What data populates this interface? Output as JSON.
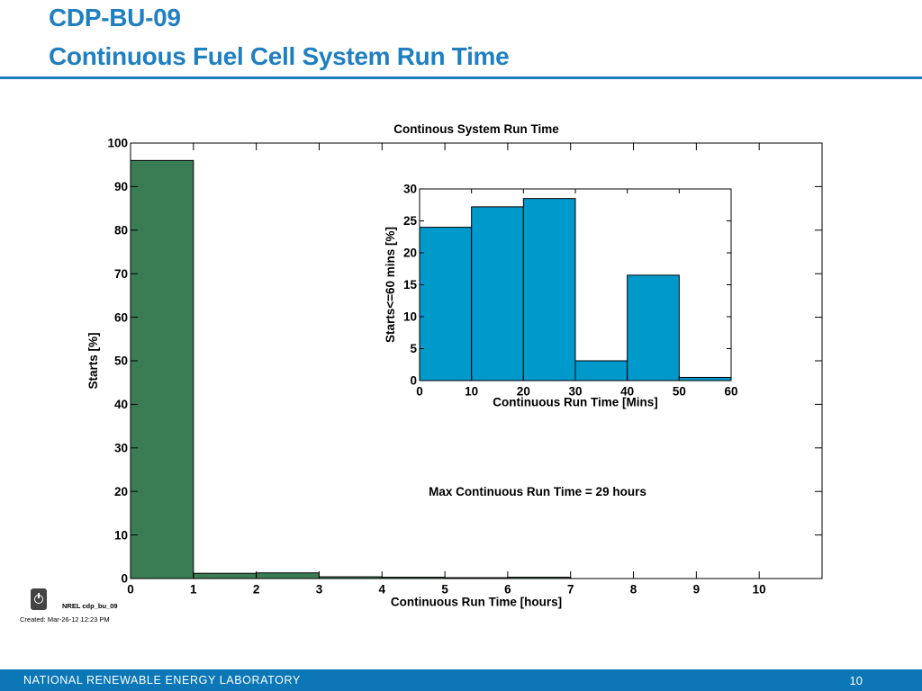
{
  "slide": {
    "title_line1": "CDP-BU-09",
    "title_line2": "Continuous Fuel Cell System Run Time",
    "footer_lab": "NATIONAL RENEWABLE ENERGY LABORATORY",
    "page_number": "10",
    "source_tag": "NREL cdp_bu_09",
    "created": "Created: Mar-26-12 12:23 PM",
    "logo_icon": "power-icon",
    "colors": {
      "title": "#1f7fc1",
      "footer": "#0b77b7",
      "main_bars": "#3a7d55",
      "inset_bars": "#0099cc"
    }
  },
  "chart_data": [
    {
      "type": "bar",
      "title": "Continous System Run Time",
      "xlabel": "Continuous Run Time [hours]",
      "ylabel": "Starts [%]",
      "xlim": [
        0,
        11
      ],
      "ylim": [
        0,
        100
      ],
      "xticks": [
        0,
        1,
        2,
        3,
        4,
        5,
        6,
        7,
        8,
        9,
        10
      ],
      "yticks": [
        0,
        10,
        20,
        30,
        40,
        50,
        60,
        70,
        80,
        90,
        100
      ],
      "bin_edges": [
        0,
        1,
        2,
        3,
        4,
        5,
        6,
        7
      ],
      "values": [
        96,
        1.2,
        1.3,
        0.4,
        0.3,
        0.2,
        0.3
      ],
      "annotation": "Max Continuous Run Time = 29 hours",
      "grid": false
    },
    {
      "type": "bar",
      "title": "",
      "xlabel": "Continuous Run Time [Mins]",
      "ylabel": "Starts<=60 mins [%]",
      "xlim": [
        0,
        60
      ],
      "ylim": [
        0,
        30
      ],
      "xticks": [
        0,
        10,
        20,
        30,
        40,
        50,
        60
      ],
      "yticks": [
        0,
        5,
        10,
        15,
        20,
        25,
        30
      ],
      "bin_edges": [
        0,
        10,
        20,
        30,
        40,
        50,
        60
      ],
      "values": [
        24,
        27.2,
        28.5,
        3.1,
        16.5,
        0.5
      ],
      "grid": false
    }
  ]
}
